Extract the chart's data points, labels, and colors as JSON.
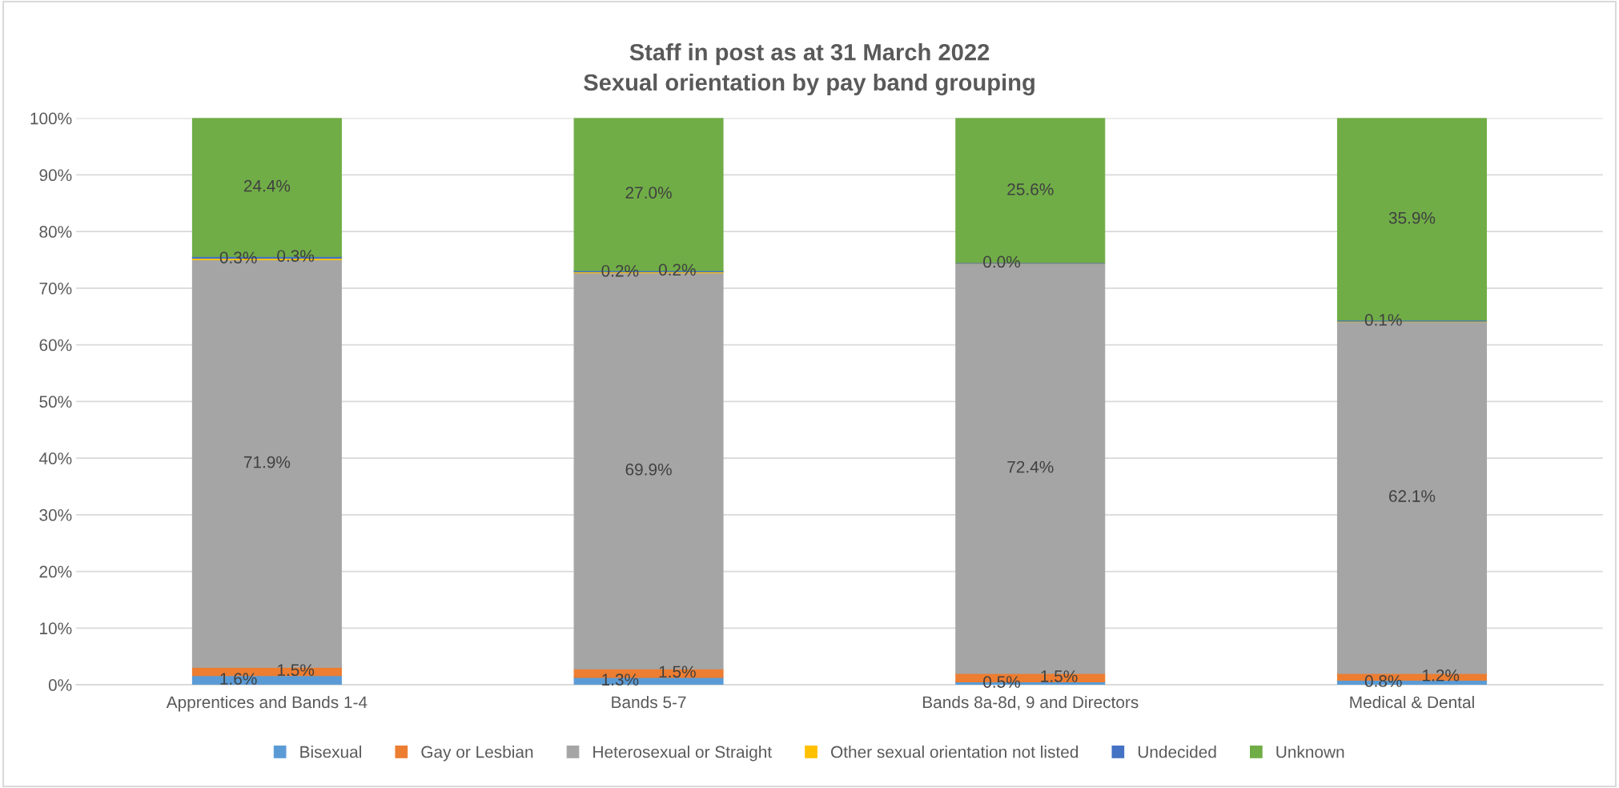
{
  "chart_data": {
    "type": "bar",
    "stacked": true,
    "title": "Staff in post as at 31 March 2022\nSexual orientation by pay band grouping",
    "categories": [
      "Apprentices and Bands 1-4",
      "Bands 5-7",
      "Bands 8a-8d, 9 and Directors",
      "Medical & Dental"
    ],
    "series": [
      {
        "name": "Bisexual",
        "color": "#5b9bd5",
        "values": [
          1.6,
          1.3,
          0.5,
          0.8
        ],
        "value_labels": [
          "1.6%",
          "1.3%",
          "0.5%",
          "0.8%"
        ]
      },
      {
        "name": "Gay or Lesbian",
        "color": "#ed7d31",
        "values": [
          1.5,
          1.5,
          1.5,
          1.2
        ],
        "value_labels": [
          "1.5%",
          "1.5%",
          "1.5%",
          "1.2%"
        ]
      },
      {
        "name": "Heterosexual or Straight",
        "color": "#a5a5a5",
        "values": [
          71.9,
          69.9,
          72.4,
          62.1
        ],
        "value_labels": [
          "71.9%",
          "69.9%",
          "72.4%",
          "62.1%"
        ]
      },
      {
        "name": "Other sexual orientation not listed",
        "color": "#ffc000",
        "values": [
          0.3,
          0.2,
          0.0,
          0.1
        ],
        "value_labels": [
          "0.3%",
          "0.2%",
          "0.0%",
          "0.1%"
        ]
      },
      {
        "name": "Undecided",
        "color": "#4472c4",
        "values": [
          0.3,
          0.2,
          0.0,
          0.0
        ],
        "value_labels": [
          "0.3%",
          "0.2%",
          null,
          null
        ]
      },
      {
        "name": "Unknown",
        "color": "#70ad47",
        "values": [
          24.4,
          27.0,
          25.6,
          35.9
        ],
        "value_labels": [
          "24.4%",
          "27.0%",
          "25.6%",
          "35.9%"
        ]
      }
    ],
    "ylim": [
      0,
      100
    ],
    "yticks": [
      {
        "value": 0,
        "label": "0%"
      },
      {
        "value": 10,
        "label": "10%"
      },
      {
        "value": 20,
        "label": "20%"
      },
      {
        "value": 30,
        "label": "30%"
      },
      {
        "value": 40,
        "label": "40%"
      },
      {
        "value": 50,
        "label": "50%"
      },
      {
        "value": 60,
        "label": "60%"
      },
      {
        "value": 70,
        "label": "70%"
      },
      {
        "value": 80,
        "label": "80%"
      },
      {
        "value": 90,
        "label": "90%"
      },
      {
        "value": 100,
        "label": "100%"
      }
    ],
    "grid": "y",
    "legend": "bottom"
  }
}
